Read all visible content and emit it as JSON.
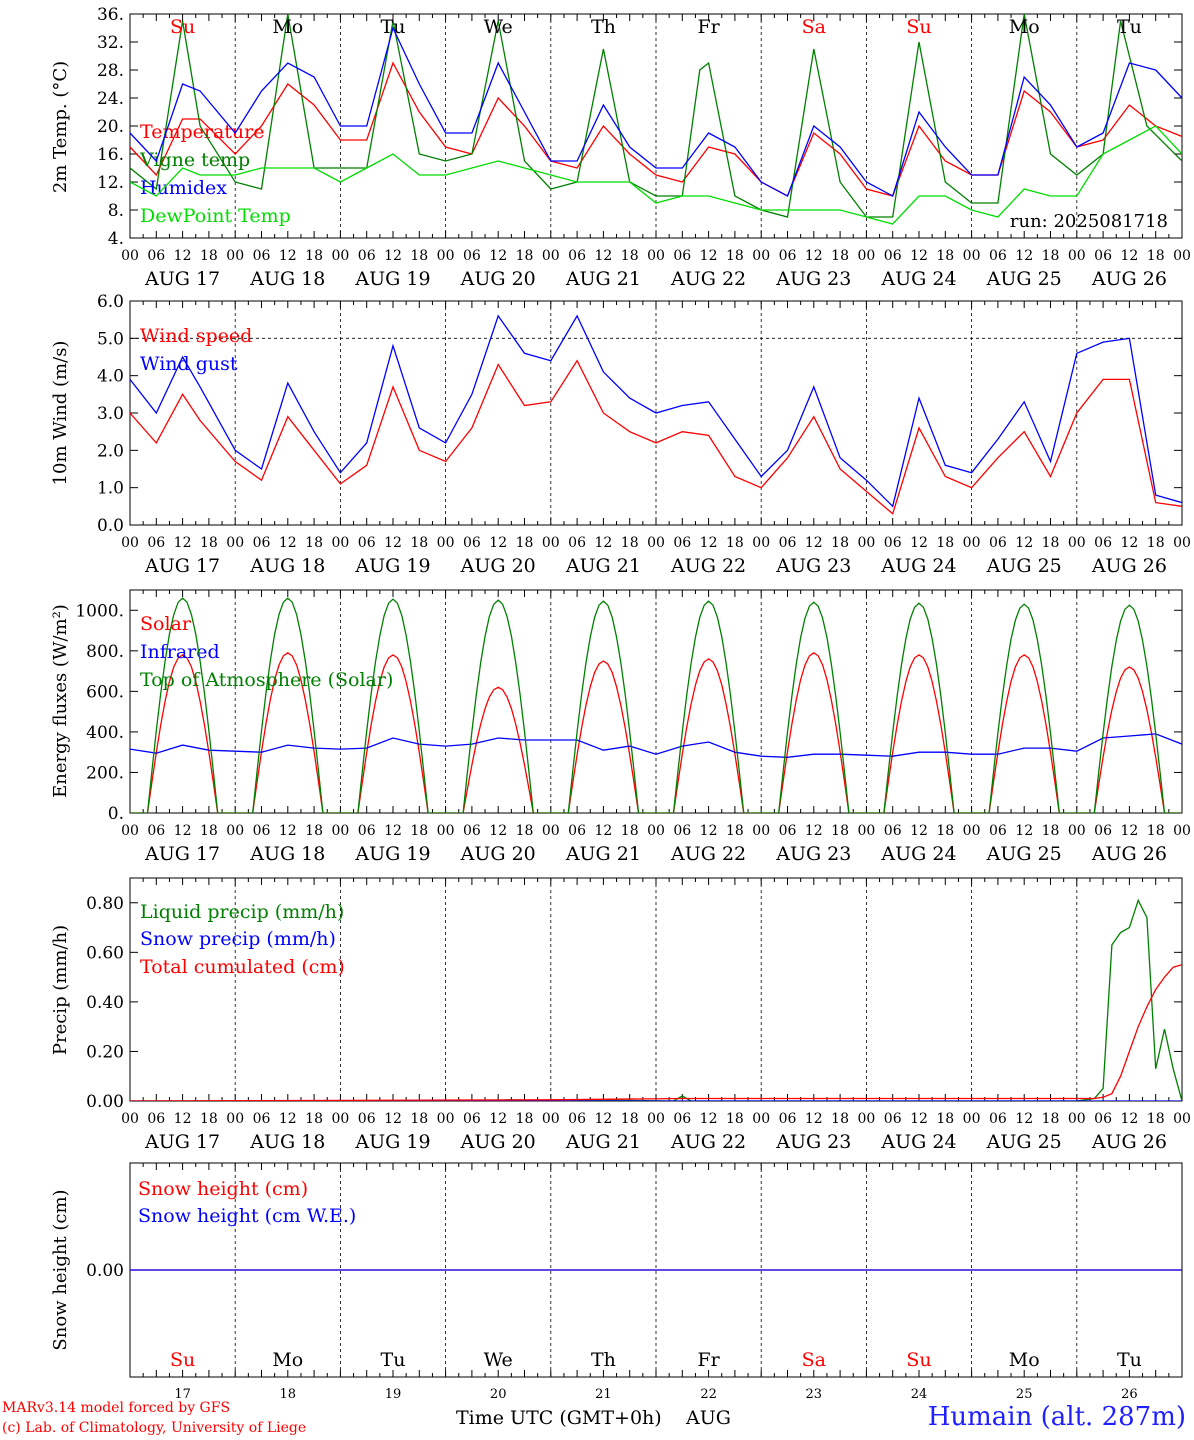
{
  "days": {
    "dates": [
      "AUG 17",
      "AUG 18",
      "AUG 19",
      "AUG 20",
      "AUG 21",
      "AUG 22",
      "AUG 23",
      "AUG 24",
      "AUG 25",
      "AUG 26"
    ],
    "weekdays": [
      "Su",
      "Mo",
      "Tu",
      "We",
      "Th",
      "Fr",
      "Sa",
      "Su",
      "Mo",
      "Tu"
    ],
    "weekday_colors": [
      "#ff0000",
      "#000000",
      "#000000",
      "#000000",
      "#000000",
      "#000000",
      "#ff0000",
      "#ff0000",
      "#000000",
      "#000000"
    ],
    "day_numbers": [
      "17",
      "18",
      "19",
      "20",
      "21",
      "22",
      "23",
      "24",
      "25",
      "26"
    ],
    "hour_ticks": [
      "00",
      "06",
      "12",
      "18"
    ],
    "final_tick": "00"
  },
  "colors": {
    "red": "#ff0000",
    "green": "#008000",
    "blue": "#0000ff",
    "lime": "#00dd00"
  },
  "run_label": "run: 2025081718",
  "bottom_axis": {
    "label": "Time UTC (GMT+0h)",
    "month": "AUG"
  },
  "footer": {
    "model": "MARv3.14 model forced by GFS",
    "lab": "(c) Lab. of Climatology, University of Liege",
    "station": "Humain (alt. 287m)"
  },
  "chart_data": [
    {
      "type": "line",
      "id": "temperature",
      "ylabel": "2m Temp. (°C)",
      "ylim": [
        4,
        36
      ],
      "yticks": [
        "4.",
        "8.",
        "12.",
        "16.",
        "20.",
        "24.",
        "28.",
        "32.",
        "36."
      ],
      "x_unit": "hours since AUG 17 00 UTC",
      "series": [
        {
          "name": "Temperature",
          "color": "#ff0000",
          "x": [
            0,
            6,
            12,
            16,
            24,
            30,
            36,
            42,
            48,
            54,
            60,
            66,
            72,
            78,
            84,
            90,
            96,
            102,
            108,
            114,
            120,
            126,
            132,
            138,
            144,
            150,
            156,
            162,
            168,
            174,
            180,
            186,
            192,
            198,
            204,
            210,
            216,
            222,
            228,
            234,
            240
          ],
          "y": [
            17,
            13,
            21,
            21,
            16,
            20,
            26,
            23,
            18,
            18,
            29,
            22,
            17,
            16,
            24,
            20,
            15,
            14,
            20,
            16,
            13,
            12,
            17,
            16,
            12,
            10,
            19,
            16,
            11,
            10,
            20,
            15,
            13,
            13,
            25,
            22,
            17,
            18,
            23,
            20,
            18.5
          ]
        },
        {
          "name": "Vigne temp",
          "color": "#008000",
          "x": [
            0,
            6,
            12,
            16,
            24,
            30,
            36,
            42,
            48,
            54,
            60,
            66,
            72,
            78,
            84,
            90,
            96,
            102,
            108,
            114,
            120,
            126,
            130,
            132,
            138,
            144,
            150,
            156,
            162,
            168,
            174,
            180,
            186,
            192,
            198,
            204,
            210,
            216,
            222,
            226,
            232,
            240
          ],
          "y": [
            14,
            11,
            35,
            20,
            12,
            11,
            36,
            14,
            14,
            14,
            35,
            16,
            15,
            16,
            35,
            15,
            11,
            12,
            31,
            12,
            10,
            10,
            28,
            29,
            10,
            8,
            7,
            31,
            12,
            7,
            7,
            32,
            12,
            9,
            9,
            36,
            16,
            13,
            16,
            35,
            20,
            15
          ]
        },
        {
          "name": "Humidex",
          "color": "#0000ff",
          "x": [
            0,
            6,
            12,
            16,
            24,
            30,
            36,
            42,
            48,
            54,
            60,
            66,
            72,
            78,
            84,
            90,
            96,
            102,
            108,
            114,
            120,
            126,
            132,
            138,
            144,
            150,
            156,
            162,
            168,
            174,
            180,
            186,
            192,
            198,
            204,
            210,
            216,
            222,
            228,
            234,
            240
          ],
          "y": [
            19,
            15,
            26,
            25,
            19,
            25,
            29,
            27,
            20,
            20,
            34,
            26,
            19,
            19,
            29,
            22,
            15,
            15,
            23,
            17,
            14,
            14,
            19,
            17,
            12,
            10,
            20,
            17,
            12,
            10,
            22,
            17,
            13,
            13,
            27,
            23,
            17,
            19,
            29,
            28,
            24
          ]
        },
        {
          "name": "DewPoint Temp",
          "color": "#00dd00",
          "x": [
            0,
            6,
            12,
            16,
            24,
            30,
            36,
            42,
            48,
            54,
            60,
            66,
            72,
            78,
            84,
            90,
            96,
            102,
            108,
            114,
            120,
            126,
            132,
            138,
            144,
            150,
            156,
            162,
            168,
            174,
            180,
            186,
            192,
            198,
            204,
            210,
            216,
            222,
            228,
            234,
            240
          ],
          "y": [
            12,
            10,
            14,
            13,
            13,
            14,
            14,
            14,
            12,
            14,
            16,
            13,
            13,
            14,
            15,
            14,
            13,
            12,
            12,
            12,
            9,
            10,
            10,
            9,
            8,
            8,
            8,
            8,
            7,
            6,
            10,
            10,
            8,
            7,
            11,
            10,
            10,
            16,
            18,
            20,
            16
          ]
        }
      ]
    },
    {
      "type": "line",
      "id": "wind",
      "ylabel": "10m Wind (m/s)",
      "ylim": [
        0,
        6
      ],
      "yticks": [
        "0.0",
        "1.0",
        "2.0",
        "3.0",
        "4.0",
        "5.0",
        "6.0"
      ],
      "reference_line": 5.0,
      "series": [
        {
          "name": "Wind speed",
          "color": "#ff0000",
          "x": [
            0,
            6,
            12,
            16,
            24,
            30,
            36,
            42,
            48,
            54,
            60,
            66,
            72,
            78,
            84,
            90,
            96,
            102,
            108,
            114,
            120,
            126,
            132,
            138,
            144,
            150,
            156,
            162,
            168,
            174,
            180,
            186,
            192,
            198,
            204,
            210,
            216,
            222,
            228,
            234,
            240
          ],
          "y": [
            3.0,
            2.2,
            3.5,
            2.8,
            1.7,
            1.2,
            2.9,
            2.0,
            1.1,
            1.6,
            3.7,
            2.0,
            1.7,
            2.6,
            4.3,
            3.2,
            3.3,
            4.4,
            3.0,
            2.5,
            2.2,
            2.5,
            2.4,
            1.3,
            1.0,
            1.8,
            2.9,
            1.5,
            0.9,
            0.3,
            2.6,
            1.3,
            1.0,
            1.8,
            2.5,
            1.3,
            3.0,
            3.9,
            3.9,
            0.6,
            0.5
          ]
        },
        {
          "name": "Wind gust",
          "color": "#0000ff",
          "x": [
            0,
            6,
            12,
            16,
            24,
            30,
            36,
            42,
            48,
            54,
            60,
            66,
            72,
            78,
            84,
            90,
            96,
            102,
            108,
            114,
            120,
            126,
            132,
            138,
            144,
            150,
            156,
            162,
            168,
            174,
            180,
            186,
            192,
            198,
            204,
            210,
            216,
            222,
            228,
            234,
            240
          ],
          "y": [
            3.9,
            3.0,
            4.5,
            3.7,
            2.0,
            1.5,
            3.8,
            2.5,
            1.4,
            2.2,
            4.8,
            2.6,
            2.2,
            3.5,
            5.6,
            4.6,
            4.4,
            5.6,
            4.1,
            3.4,
            3.0,
            3.2,
            3.3,
            2.3,
            1.3,
            2.0,
            3.7,
            1.8,
            1.2,
            0.5,
            3.4,
            1.6,
            1.4,
            2.3,
            3.3,
            1.7,
            4.6,
            4.9,
            5.0,
            0.8,
            0.6
          ]
        }
      ]
    },
    {
      "type": "line",
      "id": "energy",
      "ylabel": "Energy fluxes (W/m²)",
      "ylim": [
        0,
        1100
      ],
      "yticks": [
        "0.",
        "200.",
        "400.",
        "600.",
        "800.",
        "1000."
      ],
      "series": [
        {
          "name": "Solar",
          "color": "#ff0000",
          "daily_peaks": [
            780,
            790,
            780,
            620,
            750,
            760,
            790,
            780,
            780,
            720
          ]
        },
        {
          "name": "Infrared",
          "color": "#0000ff",
          "x": [
            0,
            6,
            12,
            18,
            24,
            30,
            36,
            42,
            48,
            54,
            60,
            66,
            72,
            78,
            84,
            90,
            96,
            102,
            108,
            114,
            120,
            126,
            132,
            138,
            144,
            150,
            156,
            162,
            168,
            174,
            180,
            186,
            192,
            198,
            204,
            210,
            216,
            222,
            228,
            234,
            240
          ],
          "y": [
            315,
            295,
            335,
            310,
            305,
            300,
            335,
            320,
            315,
            320,
            370,
            340,
            330,
            340,
            370,
            360,
            360,
            360,
            310,
            330,
            290,
            330,
            350,
            300,
            280,
            275,
            290,
            290,
            285,
            280,
            300,
            300,
            290,
            290,
            320,
            320,
            305,
            370,
            380,
            390,
            340
          ]
        },
        {
          "name": "Top of Atmosphere (Solar)",
          "color": "#008000",
          "daily_peaks": [
            1060,
            1060,
            1055,
            1050,
            1045,
            1045,
            1040,
            1035,
            1030,
            1025
          ]
        }
      ]
    },
    {
      "type": "line",
      "id": "precip",
      "ylabel": "Precip (mm/h)",
      "ylim": [
        0,
        0.9
      ],
      "yticks": [
        "0.00",
        "0.20",
        "0.40",
        "0.60",
        "0.80"
      ],
      "series": [
        {
          "name": "Liquid precip (mm/h)",
          "color": "#008000",
          "x": [
            0,
            84,
            86,
            100,
            102,
            124,
            126,
            128,
            130,
            216,
            220,
            222,
            224,
            226,
            228,
            230,
            232,
            234,
            236,
            238,
            240
          ],
          "y": [
            0,
            0,
            0.005,
            0,
            0.005,
            0,
            0.02,
            0,
            0,
            0,
            0.01,
            0.05,
            0.63,
            0.68,
            0.7,
            0.81,
            0.74,
            0.13,
            0.29,
            0.13,
            0
          ]
        },
        {
          "name": "Snow precip (mm/h)",
          "color": "#0000ff",
          "x": [
            0,
            240
          ],
          "y": [
            0,
            0
          ]
        },
        {
          "name": "Total cumulated (cm)",
          "color": "#ff0000",
          "x": [
            0,
            96,
            126,
            220,
            222,
            224,
            226,
            228,
            230,
            232,
            234,
            236,
            238,
            240
          ],
          "y": [
            0,
            0.005,
            0.01,
            0.01,
            0.015,
            0.03,
            0.1,
            0.2,
            0.3,
            0.38,
            0.45,
            0.5,
            0.54,
            0.55
          ]
        }
      ]
    },
    {
      "type": "line",
      "id": "snow",
      "ylabel": "Snow height (cm)",
      "ylim": [
        -1,
        1
      ],
      "yticks": [
        "0.00"
      ],
      "series": [
        {
          "name": "Snow height (cm)",
          "color": "#ff0000",
          "x": [
            0,
            240
          ],
          "y": [
            0,
            0
          ]
        },
        {
          "name": "Snow height (cm W.E.)",
          "color": "#0000ff",
          "x": [
            0,
            240
          ],
          "y": [
            0,
            0
          ]
        }
      ]
    }
  ]
}
